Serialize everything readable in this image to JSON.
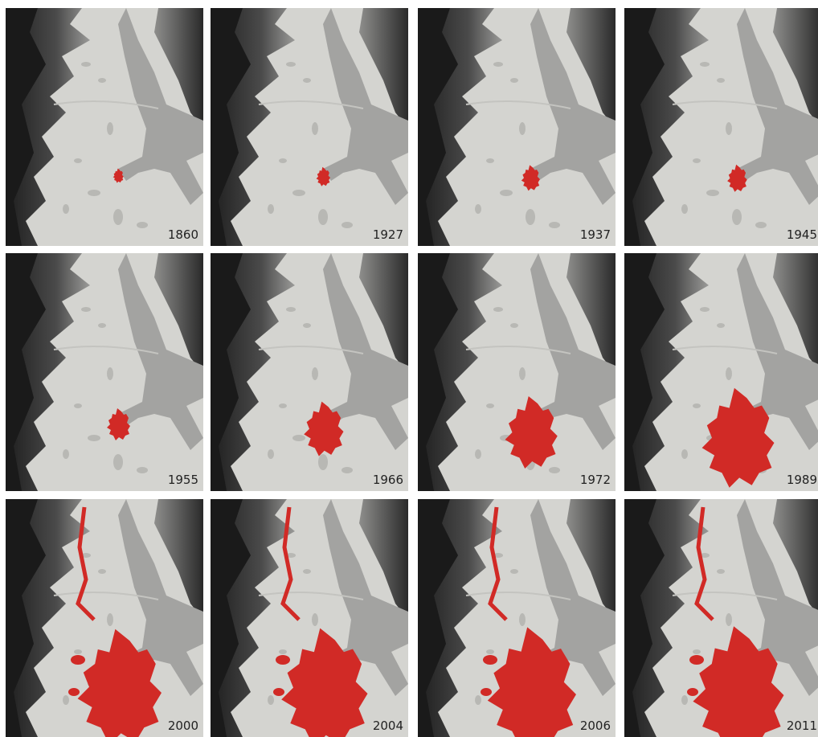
{
  "panels": [
    "1860",
    "1927",
    "1937",
    "1945",
    "1955",
    "1966",
    "1972",
    "1989",
    "2000",
    "2004",
    "2006",
    "2011"
  ]
}
